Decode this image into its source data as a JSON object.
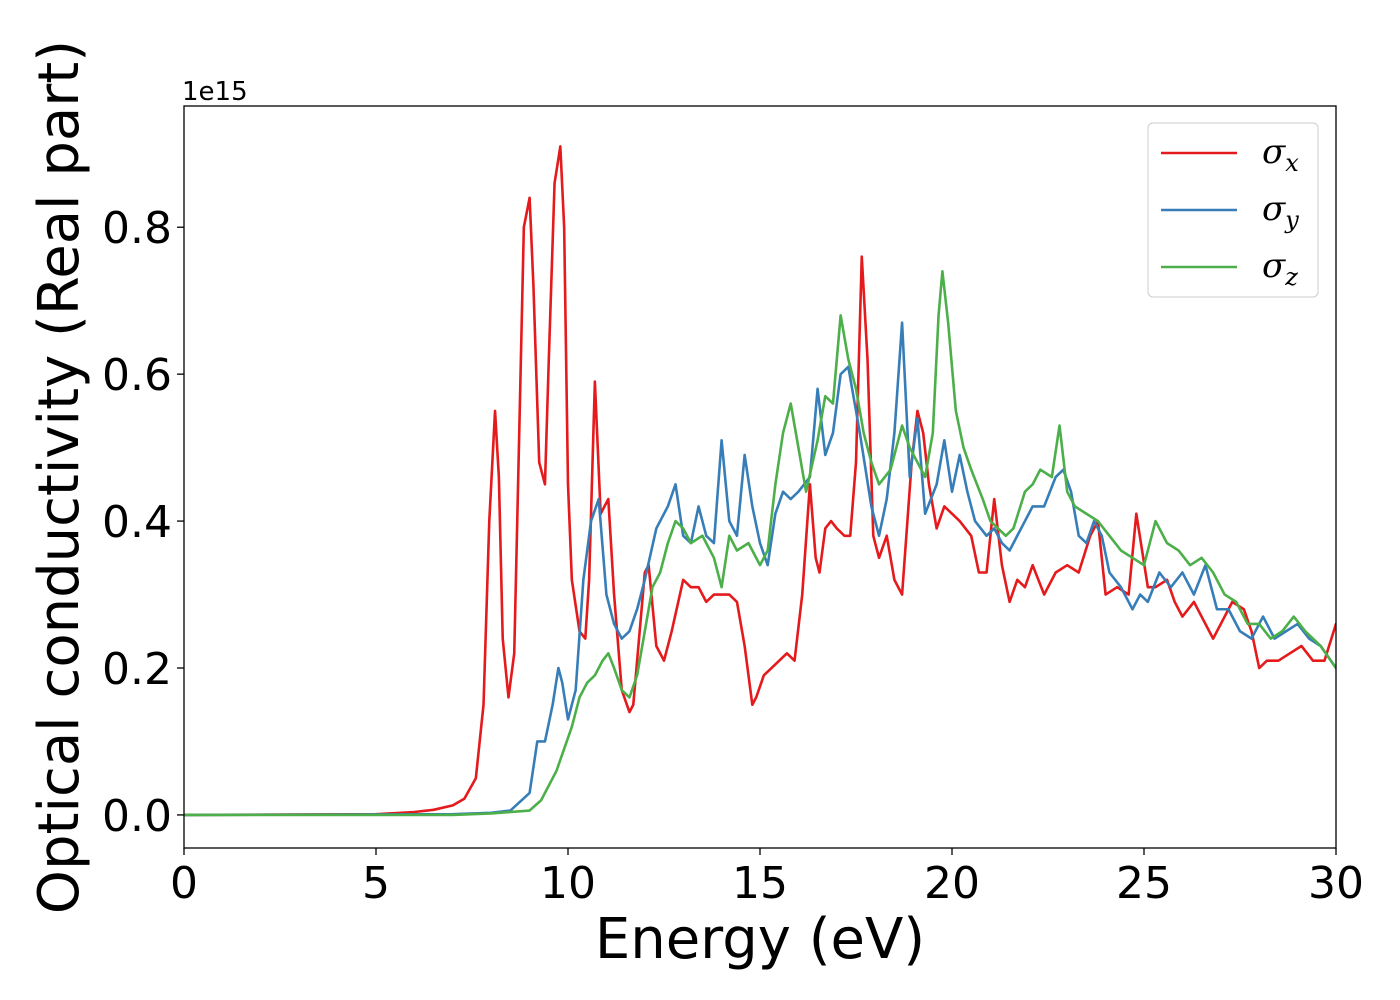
{
  "chart_data": {
    "type": "line",
    "xlabel": "Energy (eV)",
    "ylabel": "Optical conductivity (Real part)",
    "y_offset_text": "1e15",
    "xlim": [
      0,
      30
    ],
    "ylim": [
      -0.045,
      0.965
    ],
    "xticks": [
      0,
      5,
      10,
      15,
      20,
      25,
      30
    ],
    "xtick_labels": [
      "0",
      "5",
      "10",
      "15",
      "20",
      "25",
      "30"
    ],
    "yticks": [
      0.0,
      0.2,
      0.4,
      0.6,
      0.8
    ],
    "ytick_labels": [
      "0.0",
      "0.2",
      "0.4",
      "0.6",
      "0.8"
    ],
    "grid": false,
    "legend_position": "top-right",
    "series": [
      {
        "name": "σ",
        "subscript": "x",
        "color": "#e41a1c",
        "x": [
          0,
          5,
          6,
          6.5,
          7,
          7.3,
          7.6,
          7.8,
          7.95,
          8.1,
          8.2,
          8.3,
          8.45,
          8.6,
          8.7,
          8.85,
          9.0,
          9.1,
          9.25,
          9.4,
          9.5,
          9.65,
          9.8,
          9.9,
          10.0,
          10.1,
          10.3,
          10.45,
          10.55,
          10.7,
          10.85,
          10.95,
          11.05,
          11.2,
          11.4,
          11.6,
          11.7,
          11.85,
          12.0,
          12.1,
          12.3,
          12.5,
          12.7,
          13.0,
          13.2,
          13.4,
          13.6,
          13.8,
          14.0,
          14.2,
          14.4,
          14.6,
          14.8,
          14.9,
          15.1,
          15.3,
          15.5,
          15.7,
          15.9,
          16.1,
          16.3,
          16.45,
          16.55,
          16.7,
          16.85,
          17.0,
          17.2,
          17.35,
          17.5,
          17.65,
          17.8,
          17.95,
          18.1,
          18.3,
          18.5,
          18.7,
          18.95,
          19.1,
          19.25,
          19.4,
          19.6,
          19.8,
          20.0,
          20.2,
          20.5,
          20.7,
          20.9,
          21.1,
          21.3,
          21.5,
          21.7,
          21.9,
          22.1,
          22.4,
          22.7,
          23.0,
          23.3,
          23.6,
          23.8,
          24.0,
          24.3,
          24.6,
          24.8,
          24.95,
          25.1,
          25.3,
          25.6,
          25.8,
          26.0,
          26.3,
          26.6,
          26.8,
          27.0,
          27.3,
          27.6,
          27.8,
          28.0,
          28.2,
          28.5,
          28.8,
          29.1,
          29.4,
          29.7,
          30.0
        ],
        "y": [
          0.0,
          0.001,
          0.004,
          0.007,
          0.013,
          0.022,
          0.05,
          0.15,
          0.4,
          0.55,
          0.46,
          0.24,
          0.16,
          0.22,
          0.45,
          0.8,
          0.84,
          0.72,
          0.48,
          0.45,
          0.62,
          0.86,
          0.91,
          0.8,
          0.45,
          0.32,
          0.25,
          0.24,
          0.32,
          0.59,
          0.41,
          0.42,
          0.43,
          0.3,
          0.17,
          0.14,
          0.15,
          0.24,
          0.33,
          0.34,
          0.23,
          0.21,
          0.25,
          0.32,
          0.31,
          0.31,
          0.29,
          0.3,
          0.3,
          0.3,
          0.29,
          0.23,
          0.15,
          0.16,
          0.19,
          0.2,
          0.21,
          0.22,
          0.21,
          0.3,
          0.45,
          0.35,
          0.33,
          0.39,
          0.4,
          0.39,
          0.38,
          0.38,
          0.48,
          0.76,
          0.62,
          0.38,
          0.35,
          0.38,
          0.32,
          0.3,
          0.48,
          0.55,
          0.52,
          0.45,
          0.39,
          0.42,
          0.41,
          0.4,
          0.38,
          0.33,
          0.33,
          0.43,
          0.34,
          0.29,
          0.32,
          0.31,
          0.34,
          0.3,
          0.33,
          0.34,
          0.33,
          0.38,
          0.4,
          0.3,
          0.31,
          0.3,
          0.41,
          0.36,
          0.31,
          0.31,
          0.32,
          0.29,
          0.27,
          0.29,
          0.26,
          0.24,
          0.26,
          0.29,
          0.28,
          0.25,
          0.2,
          0.21,
          0.21,
          0.22,
          0.23,
          0.21,
          0.21,
          0.26
        ]
      },
      {
        "name": "σ",
        "subscript": "y",
        "color": "#377eb8",
        "x": [
          0,
          7.0,
          8.0,
          8.5,
          9.0,
          9.2,
          9.4,
          9.6,
          9.75,
          9.85,
          10.0,
          10.2,
          10.4,
          10.6,
          10.8,
          11.0,
          11.2,
          11.4,
          11.6,
          11.8,
          12.0,
          12.3,
          12.6,
          12.8,
          13.0,
          13.2,
          13.4,
          13.6,
          13.8,
          14.0,
          14.2,
          14.4,
          14.6,
          14.8,
          15.0,
          15.2,
          15.4,
          15.6,
          15.8,
          16.0,
          16.3,
          16.5,
          16.7,
          16.9,
          17.1,
          17.3,
          17.6,
          17.9,
          18.1,
          18.3,
          18.5,
          18.7,
          18.9,
          19.1,
          19.3,
          19.6,
          19.8,
          20.0,
          20.2,
          20.4,
          20.6,
          20.9,
          21.1,
          21.3,
          21.5,
          21.7,
          21.9,
          22.1,
          22.4,
          22.7,
          22.9,
          23.1,
          23.3,
          23.5,
          23.7,
          23.9,
          24.1,
          24.4,
          24.7,
          24.9,
          25.1,
          25.4,
          25.7,
          26.0,
          26.3,
          26.6,
          26.9,
          27.2,
          27.5,
          27.8,
          28.1,
          28.4,
          28.7,
          29.0,
          29.3,
          29.6,
          30.0
        ],
        "y": [
          0.0,
          0.001,
          0.003,
          0.006,
          0.03,
          0.1,
          0.1,
          0.15,
          0.2,
          0.18,
          0.13,
          0.17,
          0.32,
          0.4,
          0.43,
          0.3,
          0.26,
          0.24,
          0.25,
          0.28,
          0.32,
          0.39,
          0.42,
          0.45,
          0.38,
          0.37,
          0.42,
          0.38,
          0.37,
          0.51,
          0.4,
          0.38,
          0.49,
          0.42,
          0.37,
          0.34,
          0.41,
          0.44,
          0.43,
          0.44,
          0.46,
          0.58,
          0.49,
          0.52,
          0.6,
          0.61,
          0.52,
          0.42,
          0.38,
          0.43,
          0.52,
          0.67,
          0.46,
          0.54,
          0.41,
          0.45,
          0.51,
          0.44,
          0.49,
          0.44,
          0.4,
          0.38,
          0.39,
          0.37,
          0.36,
          0.38,
          0.4,
          0.42,
          0.42,
          0.46,
          0.47,
          0.44,
          0.38,
          0.37,
          0.4,
          0.38,
          0.33,
          0.31,
          0.28,
          0.3,
          0.29,
          0.33,
          0.31,
          0.33,
          0.3,
          0.34,
          0.28,
          0.28,
          0.25,
          0.24,
          0.27,
          0.24,
          0.25,
          0.26,
          0.24,
          0.23,
          0.2
        ]
      },
      {
        "name": "σ",
        "subscript": "z",
        "color": "#4daf4a",
        "x": [
          0,
          7.0,
          8.0,
          9.0,
          9.3,
          9.5,
          9.7,
          9.9,
          10.1,
          10.3,
          10.5,
          10.7,
          10.9,
          11.05,
          11.2,
          11.4,
          11.6,
          11.8,
          12.0,
          12.2,
          12.4,
          12.6,
          12.8,
          13.0,
          13.2,
          13.5,
          13.8,
          14.0,
          14.2,
          14.4,
          14.7,
          15.0,
          15.2,
          15.4,
          15.6,
          15.8,
          16.0,
          16.2,
          16.5,
          16.7,
          16.9,
          17.1,
          17.3,
          17.5,
          17.7,
          17.9,
          18.1,
          18.4,
          18.7,
          18.9,
          19.1,
          19.3,
          19.5,
          19.65,
          19.75,
          19.9,
          20.1,
          20.3,
          20.5,
          20.8,
          21.0,
          21.2,
          21.4,
          21.6,
          21.9,
          22.1,
          22.3,
          22.6,
          22.8,
          23.0,
          23.2,
          23.5,
          23.8,
          24.1,
          24.4,
          24.7,
          25.0,
          25.3,
          25.6,
          25.9,
          26.2,
          26.5,
          26.8,
          27.1,
          27.4,
          27.7,
          28.0,
          28.3,
          28.6,
          28.9,
          29.2,
          29.6,
          30.0
        ],
        "y": [
          0.0,
          0.0,
          0.002,
          0.006,
          0.02,
          0.04,
          0.06,
          0.09,
          0.12,
          0.16,
          0.18,
          0.19,
          0.21,
          0.22,
          0.2,
          0.17,
          0.16,
          0.19,
          0.25,
          0.31,
          0.33,
          0.37,
          0.4,
          0.39,
          0.37,
          0.38,
          0.35,
          0.31,
          0.38,
          0.36,
          0.37,
          0.34,
          0.36,
          0.45,
          0.52,
          0.56,
          0.5,
          0.44,
          0.51,
          0.57,
          0.56,
          0.68,
          0.62,
          0.58,
          0.52,
          0.48,
          0.45,
          0.47,
          0.53,
          0.5,
          0.48,
          0.46,
          0.52,
          0.68,
          0.74,
          0.67,
          0.55,
          0.5,
          0.47,
          0.43,
          0.4,
          0.39,
          0.38,
          0.39,
          0.44,
          0.45,
          0.47,
          0.46,
          0.53,
          0.44,
          0.42,
          0.41,
          0.4,
          0.38,
          0.36,
          0.35,
          0.34,
          0.4,
          0.37,
          0.36,
          0.34,
          0.35,
          0.33,
          0.3,
          0.29,
          0.26,
          0.26,
          0.24,
          0.25,
          0.27,
          0.25,
          0.23,
          0.2
        ]
      }
    ]
  }
}
